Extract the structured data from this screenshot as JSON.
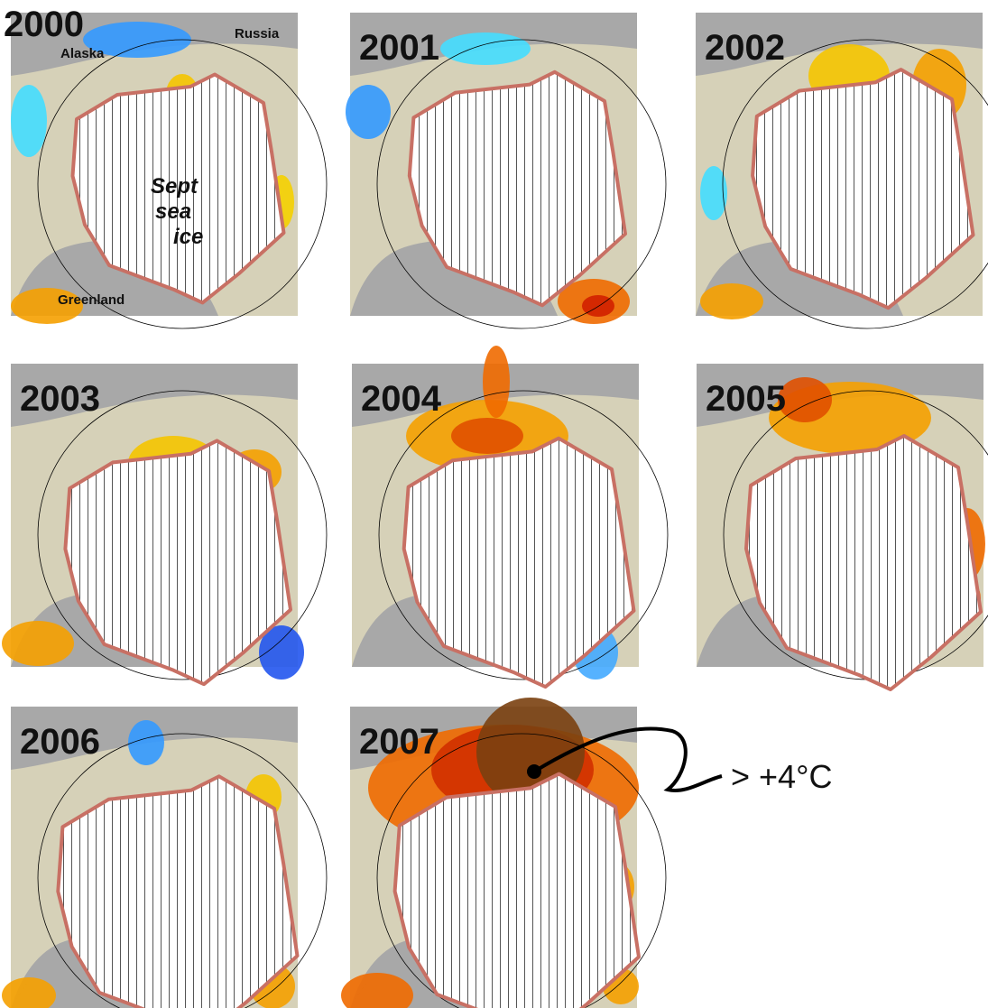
{
  "panels": [
    {
      "year": "2000",
      "places": [
        "Alaska",
        "Russia",
        "Greenland"
      ],
      "note": [
        "Sept",
        "sea",
        "ice"
      ]
    },
    {
      "year": "2001"
    },
    {
      "year": "2002"
    },
    {
      "year": "2003"
    },
    {
      "year": "2004"
    },
    {
      "year": "2005"
    },
    {
      "year": "2006"
    },
    {
      "year": "2007"
    }
  ],
  "callout": "> +4°C"
}
